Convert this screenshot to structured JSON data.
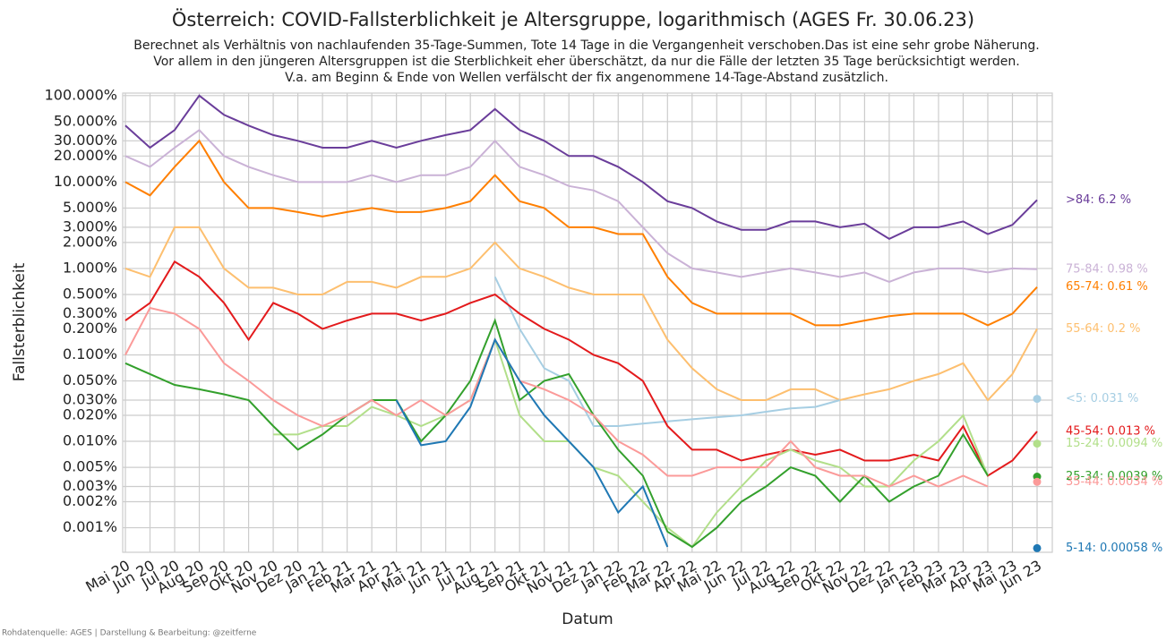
{
  "chart_data": {
    "type": "line",
    "title": "Österreich: COVID-Fallsterblichkeit je Altersgruppe, logarithmisch (AGES Fr. 30.06.23)",
    "subtitle": [
      "Berechnet als Verhältnis von nachlaufenden 35-Tage-Summen, Tote 14 Tage in die Vergangenheit verschoben.Das ist eine sehr grobe Näherung.",
      "Vor allem in den jüngeren Altersgruppen ist die Sterblichkeit eher überschätzt, da nur die Fälle der letzten 35 Tage berücksichtigt werden.",
      "V.a. am Beginn & Ende von Wellen verfälscht der fix angenommene 14-Tage-Abstand zusätzlich."
    ],
    "ylabel": "Fallsterblichkeit",
    "xlabel": "Datum",
    "source": "Rohdatenquelle: AGES | Darstellung & Bearbeitung: @zeitferne",
    "log_scale": true,
    "grid": true,
    "x": [
      "Mai 20",
      "Jun 20",
      "Jul 20",
      "Aug 20",
      "Sep 20",
      "Okt 20",
      "Nov 20",
      "Dez 20",
      "Jan 21",
      "Feb 21",
      "Mar 21",
      "Apr 21",
      "Mai 21",
      "Jun 21",
      "Jul 21",
      "Aug 21",
      "Sep 21",
      "Okt 21",
      "Nov 21",
      "Dez 21",
      "Jan 22",
      "Feb 22",
      "Mar 22",
      "Apr 22",
      "Mai 22",
      "Jun 22",
      "Jul 22",
      "Aug 22",
      "Sep 22",
      "Okt 22",
      "Nov 22",
      "Dez 22",
      "Jan 23",
      "Feb 23",
      "Mar 23",
      "Apr 23",
      "Mai 23",
      "Jun 23"
    ],
    "ylim": [
      0.00052,
      107
    ],
    "yticks": [
      {
        "value": 100,
        "label": "100.000%"
      },
      {
        "value": 50,
        "label": "50.000%"
      },
      {
        "value": 30,
        "label": "30.000%"
      },
      {
        "value": 20,
        "label": "20.000%"
      },
      {
        "value": 10,
        "label": "10.000%"
      },
      {
        "value": 5,
        "label": "5.000%"
      },
      {
        "value": 3,
        "label": "3.000%"
      },
      {
        "value": 2,
        "label": "2.000%"
      },
      {
        "value": 1,
        "label": "1.000%"
      },
      {
        "value": 0.5,
        "label": "0.500%"
      },
      {
        "value": 0.3,
        "label": "0.300%"
      },
      {
        "value": 0.2,
        "label": "0.200%"
      },
      {
        "value": 0.1,
        "label": "0.100%"
      },
      {
        "value": 0.05,
        "label": "0.050%"
      },
      {
        "value": 0.03,
        "label": "0.030%"
      },
      {
        "value": 0.02,
        "label": "0.020%"
      },
      {
        "value": 0.01,
        "label": "0.010%"
      },
      {
        "value": 0.005,
        "label": "0.005%"
      },
      {
        "value": 0.003,
        "label": "0.003%"
      },
      {
        "value": 0.002,
        "label": "0.002%"
      },
      {
        "value": 0.001,
        "label": "0.001%"
      }
    ],
    "series": [
      {
        "name": ">84: 6.2 %",
        "color": "#6a3d9a",
        "values": [
          45,
          25,
          40,
          100,
          60,
          45,
          35,
          30,
          25,
          25,
          30,
          25,
          30,
          35,
          40,
          70,
          40,
          30,
          20,
          20,
          15,
          10,
          6,
          5,
          3.5,
          2.8,
          2.8,
          3.5,
          3.5,
          3.0,
          3.3,
          2.2,
          3,
          3,
          3.5,
          2.5,
          3.2,
          6.2
        ]
      },
      {
        "name": "75-84: 0.98 %",
        "color": "#cab2d6",
        "values": [
          20,
          15,
          25,
          40,
          20,
          15,
          12,
          10,
          10,
          10,
          12,
          10,
          12,
          12,
          15,
          30,
          15,
          12,
          9,
          8,
          6,
          3,
          1.5,
          1,
          0.9,
          0.8,
          0.9,
          1.0,
          0.9,
          0.8,
          0.9,
          0.7,
          0.9,
          1.0,
          1.0,
          0.9,
          1.0,
          0.98
        ]
      },
      {
        "name": "65-74: 0.61 %",
        "color": "#ff7f00",
        "values": [
          10,
          7,
          15,
          30,
          10,
          5,
          5,
          4.5,
          4,
          4.5,
          5,
          4.5,
          4.5,
          5,
          6,
          12,
          6,
          5,
          3,
          3,
          2.5,
          2.5,
          0.8,
          0.4,
          0.3,
          0.3,
          0.3,
          0.3,
          0.22,
          0.22,
          0.25,
          0.28,
          0.3,
          0.3,
          0.3,
          0.22,
          0.3,
          0.61
        ]
      },
      {
        "name": "55-64: 0.2 %",
        "color": "#fdbf6f",
        "values": [
          1,
          0.8,
          3,
          3,
          1,
          0.6,
          0.6,
          0.5,
          0.5,
          0.7,
          0.7,
          0.6,
          0.8,
          0.8,
          1,
          2,
          1,
          0.8,
          0.6,
          0.5,
          0.5,
          0.5,
          0.15,
          0.07,
          0.04,
          0.03,
          0.03,
          0.04,
          0.04,
          0.03,
          0.035,
          0.04,
          0.05,
          0.06,
          0.08,
          0.03,
          0.06,
          0.2
        ]
      },
      {
        "name": "<5: 0.031 %",
        "color": "#a6cee3",
        "values": [
          null,
          null,
          null,
          null,
          null,
          null,
          null,
          null,
          null,
          null,
          null,
          null,
          null,
          null,
          null,
          0.8,
          0.2,
          0.07,
          0.05,
          0.015,
          0.015,
          0.016,
          0.017,
          0.018,
          0.019,
          0.02,
          0.022,
          0.024,
          0.025,
          0.03,
          null,
          null,
          null,
          null,
          null,
          null,
          null,
          0.031
        ]
      },
      {
        "name": "45-54: 0.013 %",
        "color": "#e31a1c",
        "values": [
          0.25,
          0.4,
          1.2,
          0.8,
          0.4,
          0.15,
          0.4,
          0.3,
          0.2,
          0.25,
          0.3,
          0.3,
          0.25,
          0.3,
          0.4,
          0.5,
          0.3,
          0.2,
          0.15,
          0.1,
          0.08,
          0.05,
          0.015,
          0.008,
          0.008,
          0.006,
          0.007,
          0.008,
          0.007,
          0.008,
          0.006,
          0.006,
          0.007,
          0.006,
          0.015,
          0.004,
          0.006,
          0.013
        ]
      },
      {
        "name": "15-24: 0.0094 %",
        "color": "#b2df8a",
        "values": [
          null,
          null,
          null,
          null,
          null,
          null,
          0.012,
          0.012,
          0.015,
          0.015,
          0.025,
          0.02,
          0.015,
          0.02,
          0.03,
          0.15,
          0.02,
          0.01,
          0.01,
          0.005,
          0.004,
          0.002,
          0.001,
          0.0006,
          0.0015,
          0.003,
          0.006,
          0.008,
          0.006,
          0.005,
          0.003,
          0.003,
          0.006,
          0.01,
          0.02,
          0.004,
          null,
          0.0094
        ]
      },
      {
        "name": "25-34: 0.0039 %",
        "color": "#33a02c",
        "values": [
          0.08,
          0.06,
          0.045,
          0.04,
          0.035,
          0.03,
          0.015,
          0.008,
          0.012,
          0.02,
          0.03,
          0.03,
          0.01,
          0.02,
          0.05,
          0.25,
          0.03,
          0.05,
          0.06,
          0.02,
          0.008,
          0.004,
          0.0009,
          0.0006,
          0.001,
          0.002,
          0.003,
          0.005,
          0.004,
          0.002,
          0.004,
          0.002,
          0.003,
          0.004,
          0.012,
          0.004,
          null,
          0.0039
        ]
      },
      {
        "name": "35-44: 0.0034 %",
        "color": "#fb9a99",
        "values": [
          0.1,
          0.35,
          0.3,
          0.2,
          0.08,
          0.05,
          0.03,
          0.02,
          0.015,
          0.02,
          0.03,
          0.02,
          0.03,
          0.02,
          0.03,
          0.15,
          0.05,
          0.04,
          0.03,
          0.02,
          0.01,
          0.007,
          0.004,
          0.004,
          0.005,
          0.005,
          0.005,
          0.01,
          0.005,
          0.004,
          0.004,
          0.003,
          0.004,
          0.003,
          0.004,
          0.003,
          null,
          0.0034
        ]
      },
      {
        "name": "5-14: 0.00058 %",
        "color": "#1f78b4",
        "values": [
          null,
          null,
          null,
          null,
          null,
          null,
          null,
          null,
          null,
          null,
          null,
          0.03,
          0.009,
          0.01,
          0.025,
          0.15,
          0.05,
          0.02,
          0.01,
          0.005,
          0.0015,
          0.003,
          0.0006,
          null,
          null,
          null,
          null,
          null,
          null,
          null,
          null,
          null,
          null,
          null,
          null,
          null,
          null,
          0.00058
        ]
      }
    ]
  }
}
